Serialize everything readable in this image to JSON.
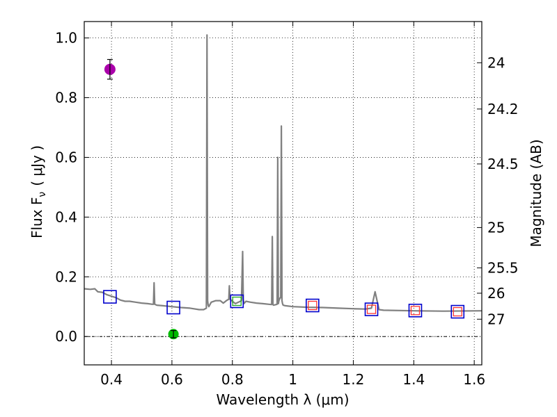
{
  "chart_data": {
    "type": "line",
    "xlabel": "Wavelength  λ (μm)",
    "ylabel": "Flux  F",
    "ylabel_subscript": "ν",
    "ylabel_units": "( μJy )",
    "ylabel_right": "Magnitude (AB)",
    "xlim": [
      0.31,
      1.625
    ],
    "ylim": [
      -0.095,
      1.055
    ],
    "x_ticks": [
      0.4,
      0.6,
      0.8,
      1.0,
      1.2,
      1.4,
      1.6
    ],
    "x_tick_labels": [
      "0.4",
      "0.6",
      "0.8",
      "1",
      "1.2",
      "1.4",
      "1.6"
    ],
    "y_ticks": [
      0.0,
      0.2,
      0.4,
      0.6,
      0.8,
      1.0
    ],
    "y_tick_labels": [
      "0.0",
      "0.2",
      "0.4",
      "0.6",
      "0.8",
      "1.0"
    ],
    "grid": true,
    "zero_line": true,
    "right_axis_ticks": [
      {
        "label": "24",
        "flux": 0.917
      },
      {
        "label": "24.2",
        "flux": 0.762
      },
      {
        "label": "24.5",
        "flux": 0.578
      },
      {
        "label": "25",
        "flux": 0.365
      },
      {
        "label": "25.5",
        "flux": 0.23
      },
      {
        "label": "26",
        "flux": 0.145
      },
      {
        "label": "27",
        "flux": 0.058
      }
    ],
    "spectrum": {
      "name": "model spectrum",
      "color": "#808080",
      "x": [
        0.31,
        0.33,
        0.345,
        0.355,
        0.37,
        0.385,
        0.4,
        0.415,
        0.43,
        0.445,
        0.46,
        0.48,
        0.5,
        0.52,
        0.535,
        0.539,
        0.541,
        0.543,
        0.55,
        0.57,
        0.6,
        0.63,
        0.66,
        0.69,
        0.705,
        0.714,
        0.716,
        0.718,
        0.72,
        0.722,
        0.73,
        0.745,
        0.76,
        0.77,
        0.78,
        0.788,
        0.79,
        0.792,
        0.8,
        0.81,
        0.82,
        0.83,
        0.834,
        0.836,
        0.838,
        0.845,
        0.86,
        0.88,
        0.9,
        0.92,
        0.93,
        0.932,
        0.934,
        0.936,
        0.94,
        0.948,
        0.95,
        0.952,
        0.954,
        0.956,
        0.958,
        0.96,
        0.962,
        0.964,
        0.966,
        0.968,
        0.975,
        1.0,
        1.05,
        1.1,
        1.15,
        1.2,
        1.24,
        1.26,
        1.272,
        1.285,
        1.3,
        1.4,
        1.5,
        1.625
      ],
      "y": [
        0.16,
        0.158,
        0.16,
        0.15,
        0.148,
        0.14,
        0.135,
        0.13,
        0.122,
        0.118,
        0.118,
        0.115,
        0.112,
        0.11,
        0.108,
        0.108,
        0.18,
        0.108,
        0.105,
        0.103,
        0.1,
        0.097,
        0.095,
        0.09,
        0.09,
        0.095,
        1.01,
        0.12,
        0.105,
        0.1,
        0.115,
        0.12,
        0.12,
        0.112,
        0.12,
        0.125,
        0.17,
        0.125,
        0.118,
        0.11,
        0.115,
        0.12,
        0.285,
        0.125,
        0.11,
        0.118,
        0.115,
        0.112,
        0.11,
        0.108,
        0.107,
        0.335,
        0.107,
        0.105,
        0.106,
        0.108,
        0.6,
        0.11,
        0.12,
        0.125,
        0.13,
        0.13,
        0.705,
        0.12,
        0.11,
        0.105,
        0.103,
        0.1,
        0.098,
        0.097,
        0.095,
        0.093,
        0.092,
        0.095,
        0.15,
        0.09,
        0.088,
        0.086,
        0.085,
        0.086
      ]
    },
    "photometry_model_squares": {
      "name": "model band fluxes",
      "color": "#0000cc",
      "x": [
        0.395,
        0.605,
        0.815,
        1.065,
        1.26,
        1.405,
        1.545
      ],
      "y": [
        0.133,
        0.097,
        0.118,
        0.104,
        0.091,
        0.087,
        0.083
      ]
    },
    "photometry_inner_markers": {
      "name": "observed band fluxes",
      "points": [
        {
          "x": 0.815,
          "y": 0.118,
          "color": "#22aa22"
        },
        {
          "x": 1.065,
          "y": 0.104,
          "color": "#ff3333"
        },
        {
          "x": 1.26,
          "y": 0.091,
          "color": "#ff3333"
        },
        {
          "x": 1.405,
          "y": 0.087,
          "color": "#ff3333"
        },
        {
          "x": 1.545,
          "y": 0.083,
          "color": "#ff3333"
        }
      ]
    },
    "detections": [
      {
        "name": "magenta point",
        "x": 0.395,
        "y": 0.895,
        "yerr": 0.033,
        "color": "#aa00aa"
      },
      {
        "name": "green point",
        "x": 0.605,
        "y": 0.008,
        "yerr": 0.012,
        "color": "#00bb00"
      }
    ]
  }
}
